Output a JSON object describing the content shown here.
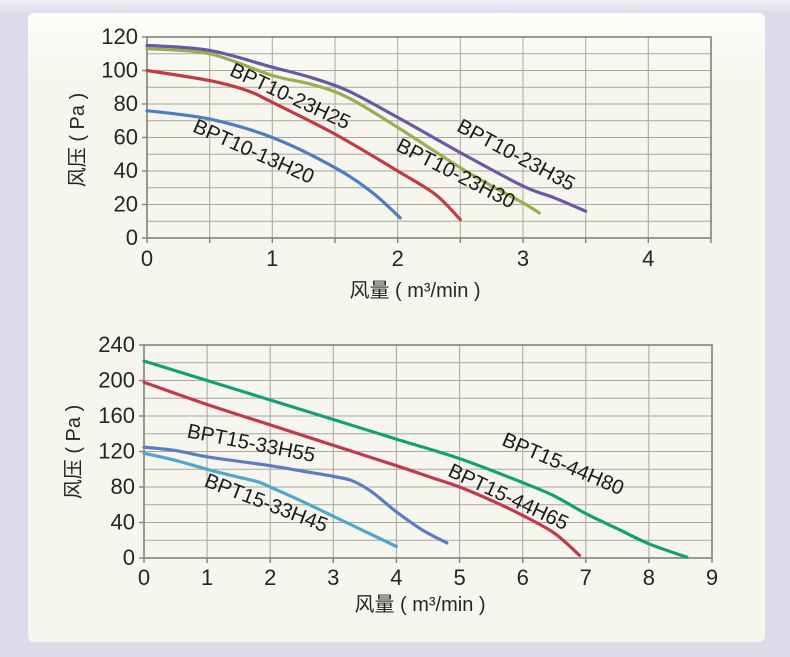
{
  "page": {
    "background": "#dcdbe9",
    "card_background": "#f6f6ee"
  },
  "chart_data": [
    {
      "type": "line",
      "title": "",
      "xlabel": "风量 ( m³/min )",
      "ylabel": "风压 ( Pa )",
      "xlim": [
        0,
        4.5
      ],
      "ylim": [
        0,
        120
      ],
      "x_grid_step": 0.5,
      "y_grid_step": 10,
      "x_ticks": [
        0,
        1,
        2,
        3,
        4
      ],
      "y_ticks": [
        0,
        20,
        40,
        60,
        80,
        100,
        120
      ],
      "grid": true,
      "legend": "inline-curve-labels",
      "grid_color": "#a8a79e",
      "frame_color": "#83827a",
      "text_color": "#262626",
      "series": [
        {
          "name": "BPT10-13H20",
          "color": "#4d7fc0",
          "points": [
            [
              0,
              76
            ],
            [
              0.5,
              71
            ],
            [
              1,
              60
            ],
            [
              1.5,
              42
            ],
            [
              1.8,
              27
            ],
            [
              2.02,
              12
            ]
          ]
        },
        {
          "name": "BPT10-23H25",
          "color": "#bf3c45",
          "points": [
            [
              0,
              100
            ],
            [
              0.5,
              94
            ],
            [
              0.8,
              88
            ],
            [
              1,
              81
            ],
            [
              1.5,
              62
            ],
            [
              2,
              40
            ],
            [
              2.3,
              26
            ],
            [
              2.5,
              11
            ]
          ]
        },
        {
          "name": "BPT10-23H30",
          "color": "#9aae4f",
          "points": [
            [
              0,
              113
            ],
            [
              0.5,
              110
            ],
            [
              1,
              97
            ],
            [
              1.3,
              92
            ],
            [
              1.6,
              84
            ],
            [
              2,
              66
            ],
            [
              2.5,
              42
            ],
            [
              2.8,
              29
            ],
            [
              3,
              21
            ],
            [
              3.13,
              15
            ]
          ]
        },
        {
          "name": "BPT10-23H35",
          "color": "#6a58a5",
          "points": [
            [
              0,
              115
            ],
            [
              0.5,
              112
            ],
            [
              1,
              102
            ],
            [
              1.3,
              96
            ],
            [
              1.6,
              88
            ],
            [
              2,
              72
            ],
            [
              2.5,
              51
            ],
            [
              3,
              31
            ],
            [
              3.25,
              24
            ],
            [
              3.5,
              16
            ]
          ]
        }
      ],
      "curve_labels": [
        {
          "text": "BPT10-13H20",
          "x": 0.83,
          "y": 48,
          "rot": 24
        },
        {
          "text": "BPT10-23H25",
          "x": 1.12,
          "y": 81,
          "rot": 25
        },
        {
          "text": "BPT10-23H30",
          "x": 2.44,
          "y": 35,
          "rot": 27
        },
        {
          "text": "BPT10-23H35",
          "x": 2.92,
          "y": 46,
          "rot": 28
        }
      ]
    },
    {
      "type": "line",
      "title": "",
      "xlabel": "风量 ( m³/min )",
      "ylabel": "风压 ( Pa )",
      "xlim": [
        0,
        9
      ],
      "ylim": [
        0,
        240
      ],
      "x_grid_step": 1,
      "y_grid_step": 20,
      "x_ticks": [
        0,
        1,
        2,
        3,
        4,
        5,
        6,
        7,
        8,
        9
      ],
      "y_ticks": [
        0,
        40,
        80,
        120,
        160,
        200,
        240
      ],
      "grid": true,
      "legend": "inline-curve-labels",
      "grid_color": "#a8a79e",
      "frame_color": "#83827a",
      "text_color": "#262626",
      "series": [
        {
          "name": "BPT15-33H45",
          "color": "#4fa7cc",
          "points": [
            [
              0,
              118
            ],
            [
              0.5,
              110
            ],
            [
              1,
              100
            ],
            [
              1.5,
              91
            ],
            [
              1.8,
              86
            ],
            [
              2,
              80
            ],
            [
              2.5,
              64
            ],
            [
              3,
              47
            ],
            [
              3.5,
              30
            ],
            [
              4,
              13
            ]
          ]
        },
        {
          "name": "BPT15-33H55",
          "color": "#5b7ec2",
          "points": [
            [
              0,
              125
            ],
            [
              0.5,
              121
            ],
            [
              1,
              114
            ],
            [
              1.5,
              109
            ],
            [
              2,
              104
            ],
            [
              2.5,
              98
            ],
            [
              3,
              92
            ],
            [
              3.3,
              87
            ],
            [
              3.6,
              75
            ],
            [
              4,
              52
            ],
            [
              4.4,
              32
            ],
            [
              4.8,
              17
            ]
          ]
        },
        {
          "name": "BPT15-44H65",
          "color": "#c23a4a",
          "points": [
            [
              0,
              198
            ],
            [
              1,
              173
            ],
            [
              2,
              150
            ],
            [
              3,
              127
            ],
            [
              4,
              104
            ],
            [
              4.5,
              92
            ],
            [
              5,
              80
            ],
            [
              5.5,
              65
            ],
            [
              6,
              48
            ],
            [
              6.5,
              28
            ],
            [
              6.9,
              3
            ]
          ]
        },
        {
          "name": "BPT15-44H80",
          "color": "#12a077",
          "points": [
            [
              0,
              222
            ],
            [
              1,
              200
            ],
            [
              2,
              178
            ],
            [
              3,
              156
            ],
            [
              4,
              134
            ],
            [
              5,
              112
            ],
            [
              6,
              85
            ],
            [
              6.5,
              70
            ],
            [
              7,
              50
            ],
            [
              7.5,
              33
            ],
            [
              8,
              16
            ],
            [
              8.6,
              1
            ]
          ]
        }
      ],
      "curve_labels": [
        {
          "text": "BPT15-33H55",
          "x": 1.68,
          "y": 122,
          "rot": 11
        },
        {
          "text": "BPT15-33H45",
          "x": 1.9,
          "y": 55,
          "rot": 21
        },
        {
          "text": "BPT15-44H65",
          "x": 5.73,
          "y": 62,
          "rot": 25
        },
        {
          "text": "BPT15-44H80",
          "x": 6.6,
          "y": 99,
          "rot": 23
        }
      ]
    }
  ]
}
